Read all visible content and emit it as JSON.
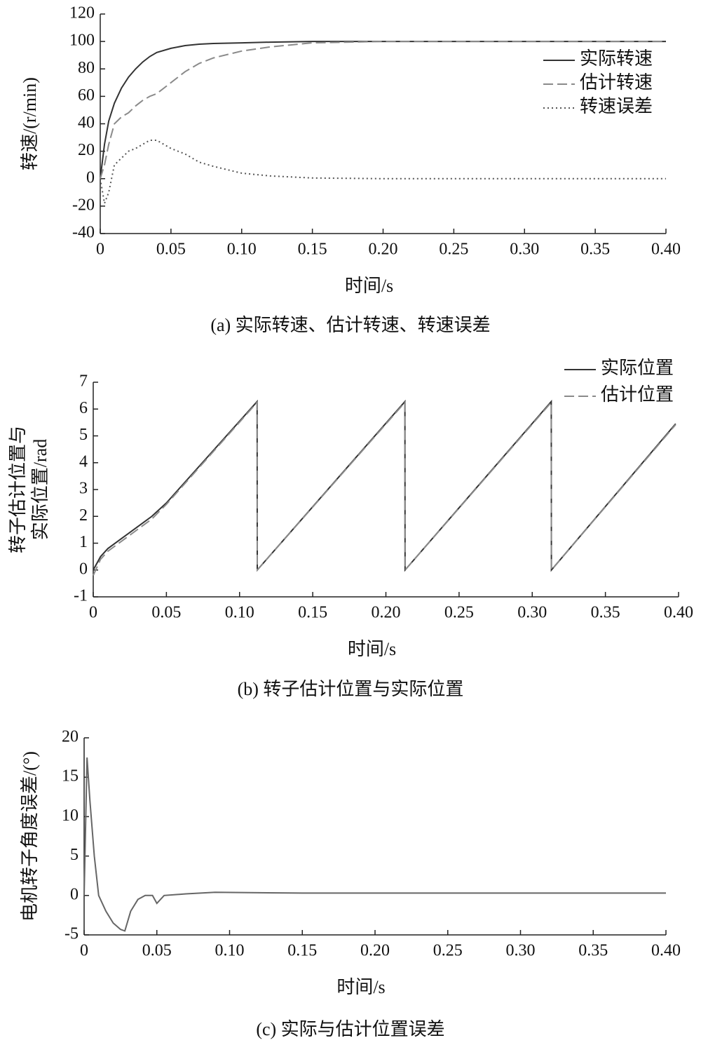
{
  "chart_data": [
    {
      "type": "line",
      "caption": "(a) 实际转速、估计转速、转速误差",
      "xlabel": "时间/s",
      "ylabel": [
        "转速/(r/min)"
      ],
      "x": [
        0,
        0.003,
        0.006,
        0.01,
        0.015,
        0.02,
        0.025,
        0.03,
        0.035,
        0.04,
        0.05,
        0.06,
        0.07,
        0.08,
        0.1,
        0.12,
        0.15,
        0.2,
        0.3,
        0.4
      ],
      "series": [
        {
          "name": "实际转速",
          "color": "#333333",
          "style": "solid",
          "values": [
            0,
            25,
            42,
            55,
            66,
            74,
            80,
            85,
            89,
            92,
            95,
            97,
            98,
            98.5,
            99,
            99.5,
            100,
            100,
            100,
            100
          ]
        },
        {
          "name": "估计转速",
          "color": "#8a8a8a",
          "style": "dashed",
          "values": [
            0,
            10,
            25,
            40,
            45,
            48,
            53,
            57,
            60,
            62,
            70,
            78,
            84,
            88,
            93,
            96,
            99,
            100,
            100,
            100
          ]
        },
        {
          "name": "转速误差",
          "color": "#555555",
          "style": "dotted",
          "values": [
            0,
            -18,
            -10,
            10,
            15,
            20,
            22,
            25,
            28,
            28,
            22,
            18,
            12,
            9,
            4,
            2,
            0.5,
            0,
            0,
            0
          ]
        }
      ],
      "xlim": [
        0,
        0.4
      ],
      "ylim": [
        -40,
        120
      ],
      "xticks": [
        0,
        0.05,
        {
          "value": 0.1,
          "label": "0.10"
        },
        0.15,
        {
          "value": 0.2,
          "label": "0.20"
        },
        0.25,
        {
          "value": 0.3,
          "label": "0.30"
        },
        0.35,
        {
          "value": 0.4,
          "label": "0.40"
        }
      ],
      "yticks": [
        -40,
        -20,
        0,
        20,
        40,
        60,
        80,
        100,
        120
      ],
      "legend": "upper right"
    },
    {
      "type": "line",
      "caption": "(b) 转子估计位置与实际位置",
      "xlabel": "时间/s",
      "ylabel": [
        "转子估计位置与",
        "实际位置/rad"
      ],
      "x": [
        0,
        0.005,
        0.01,
        0.02,
        0.03,
        0.04,
        0.05,
        0.112,
        0.1121,
        0.213,
        0.2131,
        0.313,
        0.3131,
        0.398
      ],
      "series": [
        {
          "name": "实际位置",
          "color": "#333333",
          "style": "solid",
          "values": [
            0,
            0.5,
            0.8,
            1.2,
            1.6,
            2.0,
            2.5,
            6.28,
            0,
            6.28,
            0,
            6.28,
            0,
            5.45
          ]
        },
        {
          "name": "估计位置",
          "color": "#8a8a8a",
          "style": "dashed",
          "values": [
            -0.2,
            0.4,
            0.7,
            1.1,
            1.5,
            1.9,
            2.45,
            6.25,
            0,
            6.25,
            0,
            6.25,
            0,
            5.42
          ]
        }
      ],
      "xlim": [
        0,
        0.4
      ],
      "ylim": [
        -1,
        7
      ],
      "xticks": [
        0,
        0.05,
        {
          "value": 0.1,
          "label": "0.10"
        },
        0.15,
        {
          "value": 0.2,
          "label": "0.20"
        },
        0.25,
        {
          "value": 0.3,
          "label": "0.30"
        },
        0.35,
        {
          "value": 0.4,
          "label": "0.40"
        }
      ],
      "yticks": [
        -1,
        0,
        1,
        2,
        3,
        4,
        5,
        6,
        7
      ],
      "legend": "upper right"
    },
    {
      "type": "line",
      "caption": "(c) 实际与估计位置误差",
      "xlabel": "时间/s",
      "ylabel": [
        "电机转子角度误差/(°)"
      ],
      "x": [
        0,
        0.002,
        0.004,
        0.007,
        0.01,
        0.015,
        0.02,
        0.025,
        0.028,
        0.032,
        0.037,
        0.042,
        0.047,
        0.05,
        0.055,
        0.07,
        0.09,
        0.15,
        0.25,
        0.35,
        0.4
      ],
      "series": [
        {
          "name": "误差",
          "color": "#666666",
          "style": "solid",
          "values": [
            0,
            17.5,
            12,
            5,
            0,
            -2,
            -3.5,
            -4.3,
            -4.5,
            -2,
            -0.5,
            0,
            0,
            -1,
            0,
            0.2,
            0.4,
            0.3,
            0.3,
            0.3,
            0.3
          ]
        }
      ],
      "xlim": [
        0,
        0.4
      ],
      "ylim": [
        -5,
        20
      ],
      "xticks": [
        0,
        0.05,
        {
          "value": 0.1,
          "label": "0.10"
        },
        0.15,
        {
          "value": 0.2,
          "label": "0.20"
        },
        0.25,
        {
          "value": 0.3,
          "label": "0.30"
        },
        0.35,
        {
          "value": 0.4,
          "label": "0.40"
        }
      ],
      "yticks": [
        -5,
        0,
        5,
        10,
        15,
        20
      ]
    }
  ]
}
